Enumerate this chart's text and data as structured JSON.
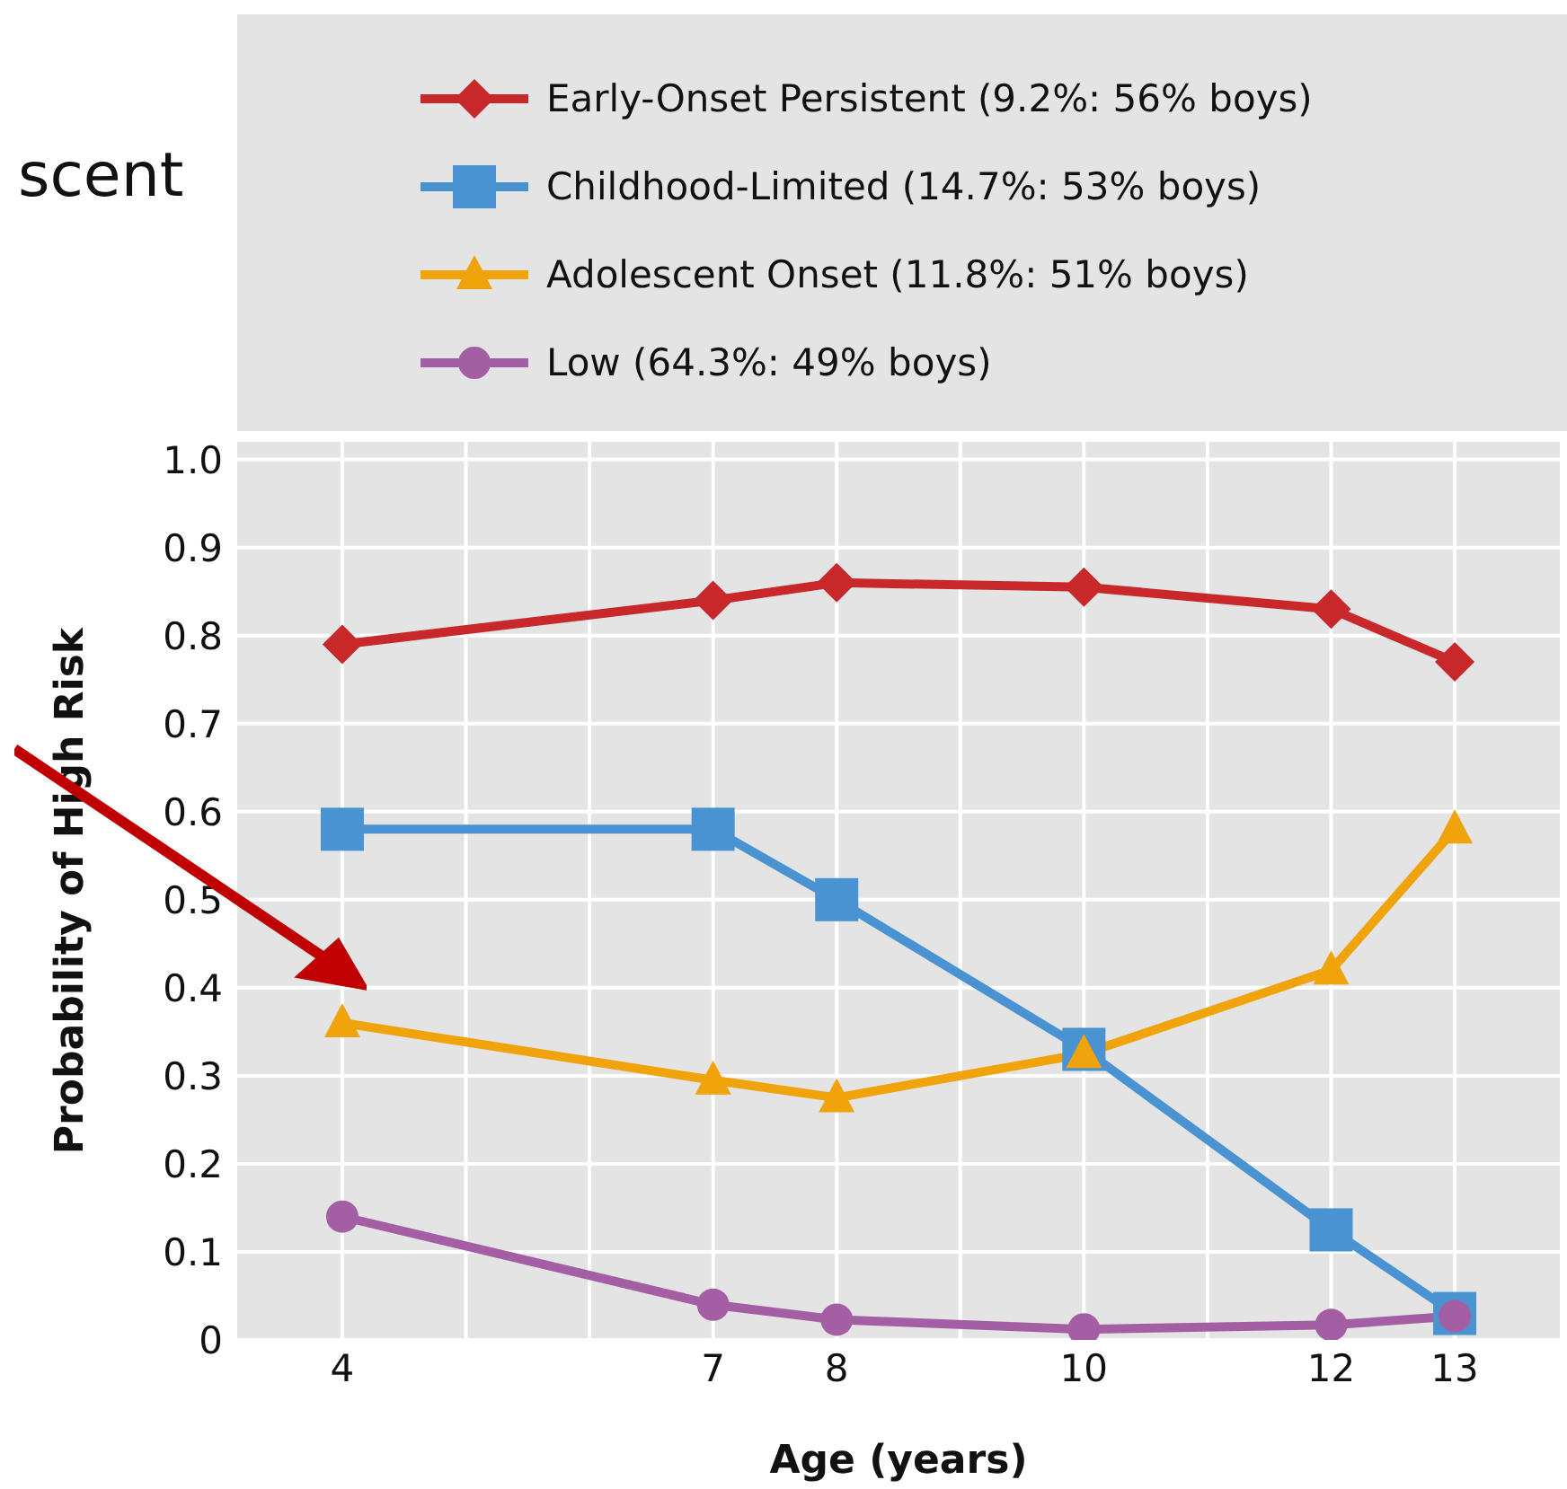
{
  "chart_data": {
    "type": "line",
    "xlabel": "Age (years)",
    "ylabel": "Probability of High Risk",
    "x": [
      4,
      7,
      8,
      10,
      12,
      13
    ],
    "series": [
      {
        "name": "Early-Onset Persistent (9.2%: 56% boys)",
        "color": "#c8282a",
        "marker": "diamond",
        "values": [
          0.79,
          0.84,
          0.86,
          0.855,
          0.83,
          0.77
        ]
      },
      {
        "name": "Childhood-Limited (14.7%: 53% boys)",
        "color": "#4a93d2",
        "marker": "square",
        "values": [
          0.58,
          0.58,
          0.5,
          0.33,
          0.125,
          0.03
        ]
      },
      {
        "name": "Adolescent Onset (11.8%: 51% boys)",
        "color": "#f0a30a",
        "marker": "triangle",
        "values": [
          0.36,
          0.295,
          0.275,
          0.325,
          0.42,
          0.58
        ]
      },
      {
        "name": "Low (64.3%: 49% boys)",
        "color": "#a45fa4",
        "marker": "circle",
        "values": [
          0.14,
          0.04,
          0.023,
          0.012,
          0.017,
          0.027
        ]
      }
    ],
    "xlim": [
      3.15,
      13.85
    ],
    "xticks": [
      4,
      {
        "value": 5,
        "label": null
      },
      {
        "value": 6,
        "label": null
      },
      7,
      8,
      {
        "value": 9,
        "label": null
      },
      10,
      {
        "value": 11,
        "label": null
      },
      12,
      13
    ],
    "ylim": [
      0,
      1.02
    ],
    "yticks": [
      0,
      0.1,
      0.2,
      0.3,
      0.4,
      0.5,
      0.6,
      0.7,
      0.8,
      0.9,
      {
        "value": 1,
        "label": "1.0"
      }
    ],
    "grid": true,
    "legend": "top",
    "annotations": [
      "scent"
    ]
  }
}
